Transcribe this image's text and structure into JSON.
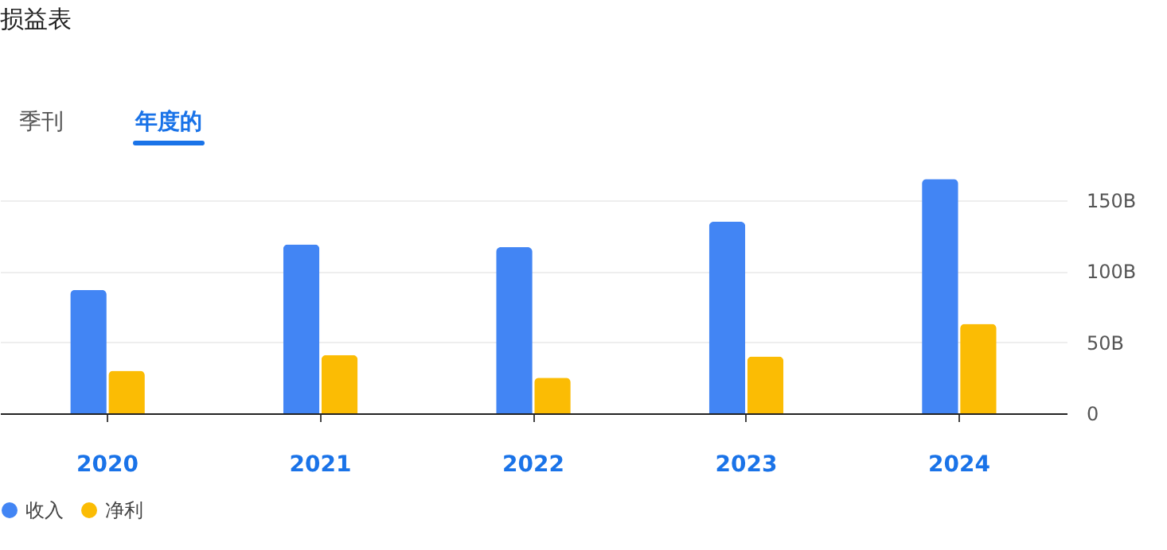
{
  "chart_data": {
    "type": "bar",
    "title": "损益表",
    "annotations": [
      "季刊",
      "年度的"
    ],
    "categories": [
      "2020",
      "2021",
      "2022",
      "2023",
      "2024"
    ],
    "series": [
      {
        "name": "收入",
        "color": "#4285f4",
        "values": [
          87,
          119,
          117,
          135,
          165
        ]
      },
      {
        "name": "净利",
        "color": "#fbbc04",
        "values": [
          30,
          41,
          25,
          40,
          63
        ]
      }
    ],
    "ylim": [
      0,
      168
    ],
    "yticks": [
      0,
      {
        "value": 50,
        "label": "50B"
      },
      {
        "value": 100,
        "label": "100B"
      },
      {
        "value": 150,
        "label": "150B"
      }
    ],
    "grid": "y",
    "legend": "bottom left"
  }
}
